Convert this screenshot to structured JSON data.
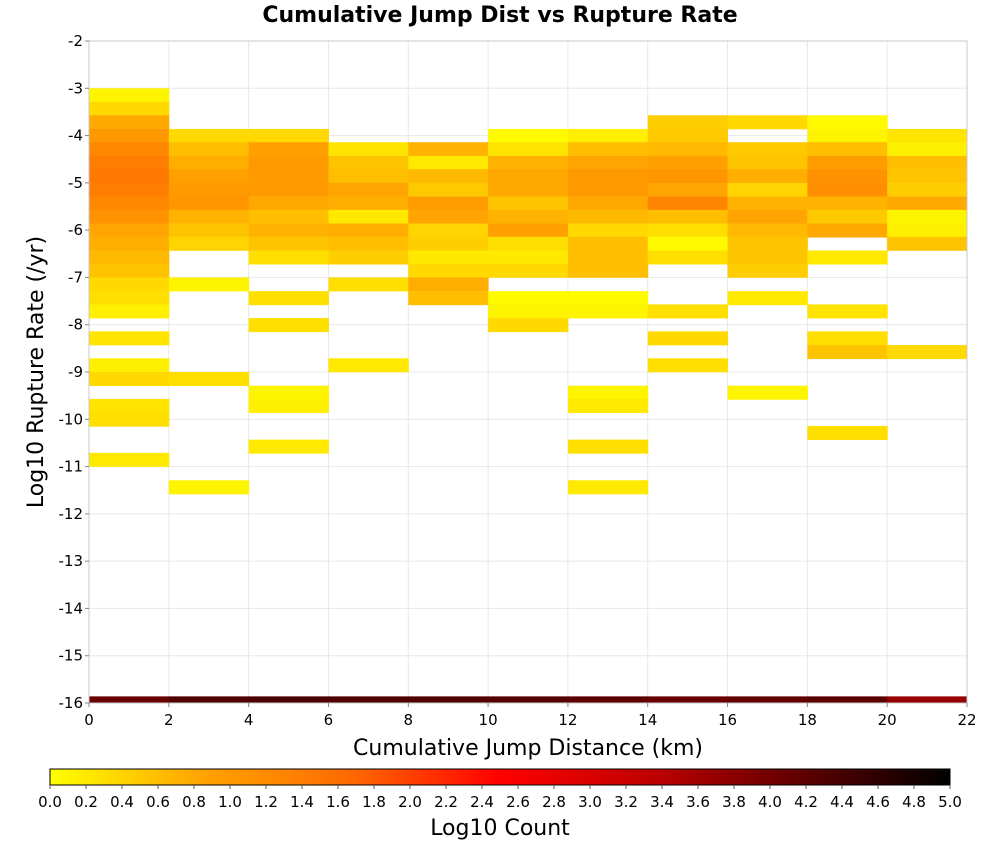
{
  "chart_data": {
    "type": "heatmap",
    "title": "Cumulative Jump Dist vs Rupture Rate",
    "xlabel": "Cumulative Jump Distance (km)",
    "ylabel": "Log10 Rupture Rate (/yr)",
    "xlim": [
      0,
      22
    ],
    "ylim": [
      -16,
      -2
    ],
    "x_ticks": [
      "0",
      "2",
      "4",
      "6",
      "8",
      "10",
      "12",
      "14",
      "16",
      "18",
      "20",
      "22"
    ],
    "y_ticks": [
      "-2",
      "-3",
      "-4",
      "-5",
      "-6",
      "-7",
      "-8",
      "-9",
      "-10",
      "-11",
      "-12",
      "-13",
      "-14",
      "-15",
      "-16"
    ],
    "grid": true,
    "x_bin_width": 2,
    "y_bin_height": 0.286,
    "colorbar": {
      "label": "Log10 Count",
      "range": [
        0,
        5
      ],
      "ticks": [
        "0.0",
        "0.2",
        "0.4",
        "0.6",
        "0.8",
        "1.0",
        "1.2",
        "1.4",
        "1.6",
        "1.8",
        "2.0",
        "2.2",
        "2.4",
        "2.6",
        "2.8",
        "3.0",
        "3.2",
        "3.4",
        "3.6",
        "3.8",
        "4.0",
        "4.2",
        "4.4",
        "4.6",
        "4.8",
        "5.0"
      ],
      "colors": [
        "#ffff00",
        "#ffa500",
        "#ff6a00",
        "#ff0000",
        "#c00000",
        "#600000",
        "#000000"
      ]
    },
    "cells": [
      {
        "x": 0,
        "ybins": [
          [
            -3.0,
            0.1
          ],
          [
            -3.29,
            0.35
          ],
          [
            -3.57,
            0.8
          ],
          [
            -3.86,
            1.0
          ],
          [
            -4.14,
            1.25
          ],
          [
            -4.43,
            1.4
          ],
          [
            -4.71,
            1.45
          ],
          [
            -5.0,
            1.4
          ],
          [
            -5.29,
            1.25
          ],
          [
            -5.57,
            1.1
          ],
          [
            -5.86,
            0.85
          ],
          [
            -6.14,
            0.75
          ],
          [
            -6.43,
            0.65
          ],
          [
            -6.71,
            0.55
          ],
          [
            -7.0,
            0.35
          ],
          [
            -7.29,
            0.3
          ],
          [
            -7.57,
            0.15
          ],
          [
            -8.14,
            0.25
          ],
          [
            -8.71,
            0.15
          ],
          [
            -9.0,
            0.35
          ],
          [
            -9.57,
            0.25
          ],
          [
            -9.86,
            0.3
          ],
          [
            -10.71,
            0.2
          ]
        ]
      },
      {
        "x": 2,
        "ybins": [
          [
            -3.86,
            0.35
          ],
          [
            -4.14,
            0.6
          ],
          [
            -4.43,
            0.75
          ],
          [
            -4.71,
            0.9
          ],
          [
            -5.0,
            1.0
          ],
          [
            -5.29,
            1.05
          ],
          [
            -5.57,
            0.7
          ],
          [
            -5.86,
            0.55
          ],
          [
            -6.14,
            0.4
          ],
          [
            -7.0,
            0.1
          ],
          [
            -9.0,
            0.3
          ],
          [
            -11.29,
            0.1
          ]
        ]
      },
      {
        "x": 4,
        "ybins": [
          [
            -3.86,
            0.35
          ],
          [
            -4.14,
            0.9
          ],
          [
            -4.43,
            1.0
          ],
          [
            -4.71,
            1.0
          ],
          [
            -5.0,
            1.0
          ],
          [
            -5.29,
            0.8
          ],
          [
            -5.57,
            0.6
          ],
          [
            -5.86,
            0.7
          ],
          [
            -6.14,
            0.55
          ],
          [
            -6.43,
            0.3
          ],
          [
            -7.29,
            0.3
          ],
          [
            -7.86,
            0.3
          ],
          [
            -9.29,
            0.1
          ],
          [
            -9.57,
            0.15
          ],
          [
            -10.43,
            0.2
          ]
        ]
      },
      {
        "x": 6,
        "ybins": [
          [
            -4.14,
            0.25
          ],
          [
            -4.43,
            0.55
          ],
          [
            -4.71,
            0.6
          ],
          [
            -5.0,
            0.85
          ],
          [
            -5.29,
            0.75
          ],
          [
            -5.57,
            0.2
          ],
          [
            -5.86,
            0.75
          ],
          [
            -6.14,
            0.6
          ],
          [
            -6.43,
            0.45
          ],
          [
            -7.0,
            0.3
          ],
          [
            -8.71,
            0.2
          ]
        ]
      },
      {
        "x": 8,
        "ybins": [
          [
            -4.14,
            0.7
          ],
          [
            -4.43,
            0.2
          ],
          [
            -4.71,
            0.65
          ],
          [
            -5.0,
            0.5
          ],
          [
            -5.29,
            0.95
          ],
          [
            -5.57,
            0.85
          ],
          [
            -5.86,
            0.4
          ],
          [
            -6.14,
            0.45
          ],
          [
            -6.43,
            0.2
          ],
          [
            -6.71,
            0.35
          ],
          [
            -7.0,
            0.75
          ],
          [
            -7.29,
            0.6
          ]
        ]
      },
      {
        "x": 10,
        "ybins": [
          [
            -3.86,
            0.05
          ],
          [
            -4.14,
            0.25
          ],
          [
            -4.43,
            0.7
          ],
          [
            -4.71,
            0.8
          ],
          [
            -5.0,
            0.8
          ],
          [
            -5.29,
            0.55
          ],
          [
            -5.57,
            0.7
          ],
          [
            -5.86,
            0.9
          ],
          [
            -6.14,
            0.3
          ],
          [
            -6.43,
            0.2
          ],
          [
            -6.71,
            0.35
          ],
          [
            -7.29,
            0.05
          ],
          [
            -7.57,
            0.1
          ],
          [
            -7.86,
            0.35
          ]
        ]
      },
      {
        "x": 12,
        "ybins": [
          [
            -3.86,
            0.15
          ],
          [
            -4.14,
            0.6
          ],
          [
            -4.43,
            0.85
          ],
          [
            -4.71,
            1.0
          ],
          [
            -5.0,
            1.0
          ],
          [
            -5.29,
            0.8
          ],
          [
            -5.57,
            0.65
          ],
          [
            -5.86,
            0.35
          ],
          [
            -6.14,
            0.6
          ],
          [
            -6.43,
            0.6
          ],
          [
            -6.71,
            0.6
          ],
          [
            -7.29,
            0.05
          ],
          [
            -7.57,
            0.1
          ],
          [
            -9.29,
            0.1
          ],
          [
            -9.57,
            0.2
          ],
          [
            -10.43,
            0.3
          ],
          [
            -11.29,
            0.2
          ]
        ]
      },
      {
        "x": 14,
        "ybins": [
          [
            -3.57,
            0.45
          ],
          [
            -3.86,
            0.5
          ],
          [
            -4.14,
            0.65
          ],
          [
            -4.43,
            0.9
          ],
          [
            -4.71,
            1.05
          ],
          [
            -5.0,
            0.85
          ],
          [
            -5.29,
            1.3
          ],
          [
            -5.57,
            0.6
          ],
          [
            -5.86,
            0.3
          ],
          [
            -6.14,
            0.05
          ],
          [
            -6.43,
            0.3
          ],
          [
            -7.57,
            0.3
          ],
          [
            -8.14,
            0.35
          ],
          [
            -8.71,
            0.3
          ]
        ]
      },
      {
        "x": 16,
        "ybins": [
          [
            -3.57,
            0.35
          ],
          [
            -4.14,
            0.5
          ],
          [
            -4.43,
            0.55
          ],
          [
            -4.71,
            0.75
          ],
          [
            -5.0,
            0.4
          ],
          [
            -5.29,
            0.7
          ],
          [
            -5.57,
            0.85
          ],
          [
            -5.86,
            0.65
          ],
          [
            -6.14,
            0.55
          ],
          [
            -6.43,
            0.55
          ],
          [
            -6.71,
            0.45
          ],
          [
            -7.29,
            0.2
          ],
          [
            -9.29,
            0.1
          ]
        ]
      },
      {
        "x": 18,
        "ybins": [
          [
            -3.57,
            0.05
          ],
          [
            -3.86,
            0.1
          ],
          [
            -4.14,
            0.6
          ],
          [
            -4.43,
            0.95
          ],
          [
            -4.71,
            1.1
          ],
          [
            -5.0,
            1.15
          ],
          [
            -5.29,
            0.7
          ],
          [
            -5.57,
            0.5
          ],
          [
            -5.86,
            0.8
          ],
          [
            -6.43,
            0.2
          ],
          [
            -7.57,
            0.25
          ],
          [
            -8.14,
            0.3
          ],
          [
            -8.43,
            0.55
          ],
          [
            -10.14,
            0.3
          ]
        ]
      },
      {
        "x": 20,
        "ybins": [
          [
            -3.86,
            0.25
          ],
          [
            -4.14,
            0.15
          ],
          [
            -4.43,
            0.6
          ],
          [
            -4.71,
            0.55
          ],
          [
            -5.0,
            0.45
          ],
          [
            -5.29,
            0.8
          ],
          [
            -5.57,
            0.1
          ],
          [
            -5.86,
            0.15
          ],
          [
            -6.14,
            0.55
          ],
          [
            -8.43,
            0.35
          ]
        ]
      }
    ],
    "bottom_row": {
      "ybin_top": -15.86,
      "values": [
        4.1,
        4.3,
        4.35,
        4.3,
        4.3,
        4.25,
        4.2,
        4.1,
        4.15,
        4.2,
        3.7
      ]
    }
  }
}
